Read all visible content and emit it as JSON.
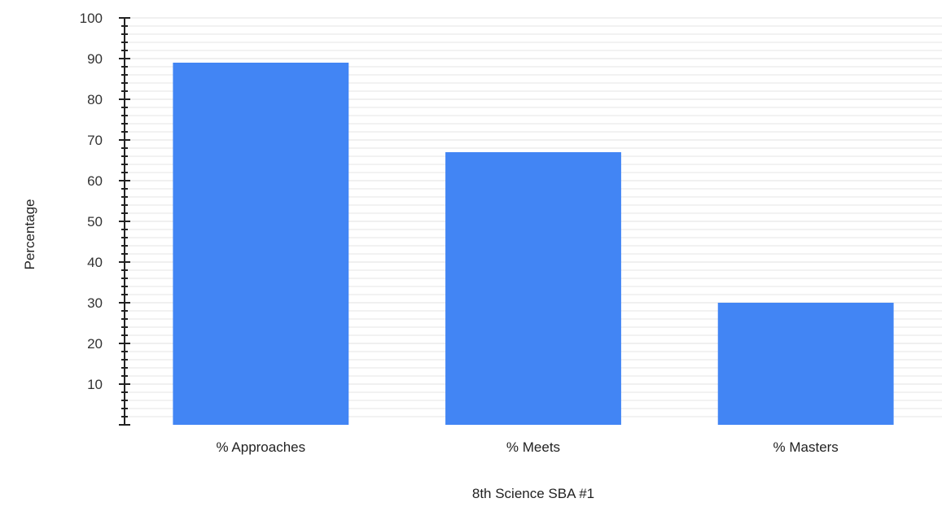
{
  "chart_data": {
    "type": "bar",
    "categories": [
      "% Approaches",
      "% Meets",
      "% Masters"
    ],
    "values": [
      89,
      67,
      30
    ],
    "title": "",
    "xlabel": "8th Science SBA #1",
    "ylabel": "Percentage",
    "ylim": [
      0,
      100
    ],
    "y_tick_labels": [
      "10",
      "20",
      "30",
      "40",
      "50",
      "60",
      "70",
      "80",
      "90",
      "100"
    ],
    "grid": true,
    "legend": "none",
    "bar_color": "#4285f4",
    "grid_color": "#e6e6e6",
    "axis_color": "#222222"
  }
}
